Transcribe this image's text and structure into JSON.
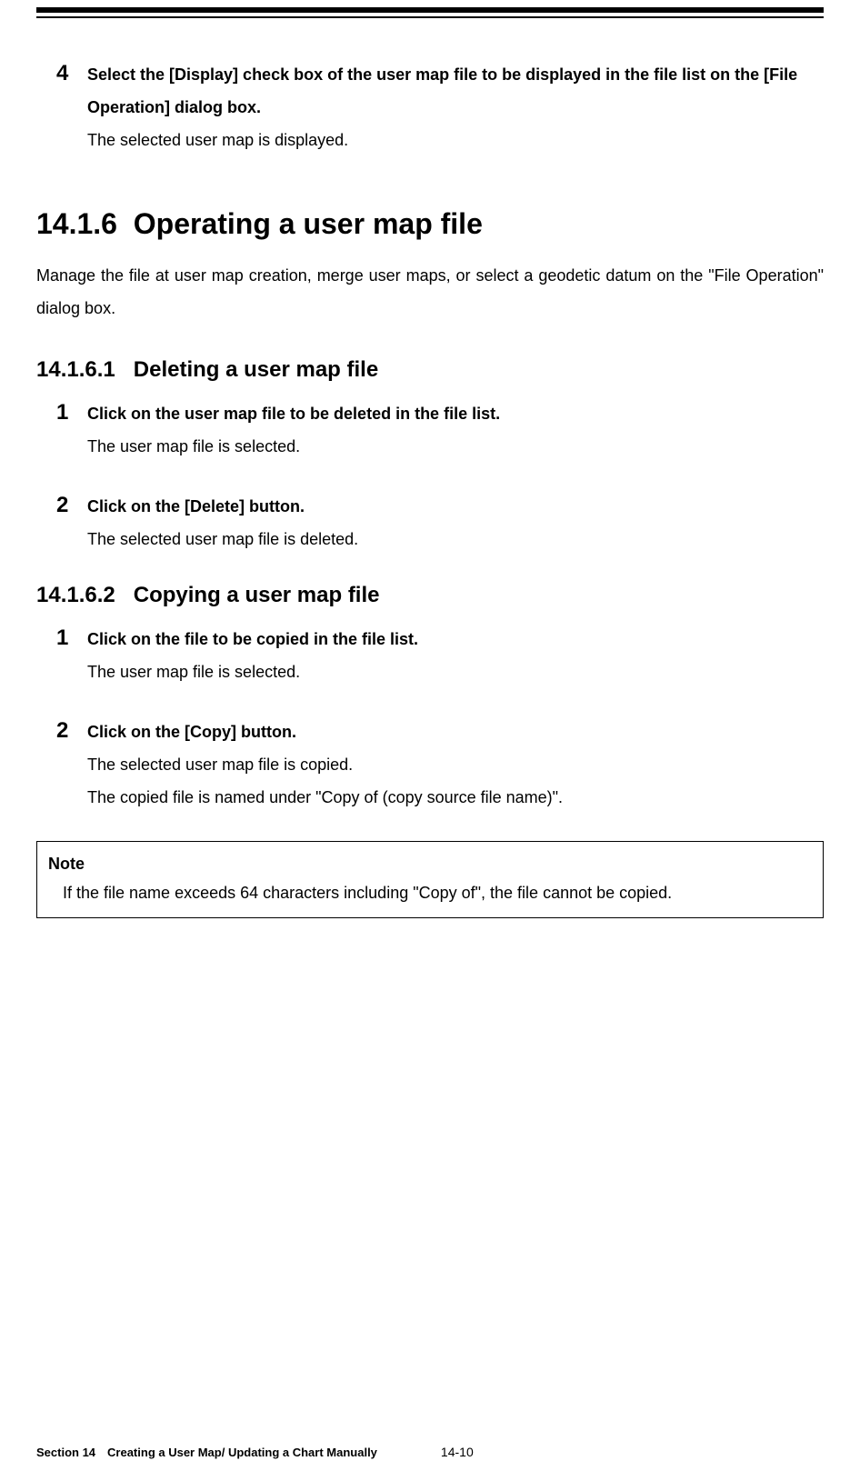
{
  "step4": {
    "num": "4",
    "title": "Select the [Display] check box of the user map file to be displayed in the file list on the [File Operation] dialog box.",
    "desc": "The selected user map is displayed."
  },
  "section_14_1_6": {
    "number": "14.1.6",
    "title": "Operating a user map file",
    "intro": "Manage the file at user map creation, merge user maps, or select a geodetic datum on the \"File Operation\" dialog box."
  },
  "section_14_1_6_1": {
    "number": "14.1.6.1",
    "title": "Deleting a user map file",
    "steps": [
      {
        "num": "1",
        "title": "Click on the user map file to be deleted in the file list.",
        "desc": "The user map file is selected."
      },
      {
        "num": "2",
        "title": "Click on the [Delete] button.",
        "desc": "The selected user map file is deleted."
      }
    ]
  },
  "section_14_1_6_2": {
    "number": "14.1.6.2",
    "title": "Copying a user map file",
    "steps": [
      {
        "num": "1",
        "title": "Click on the file to be copied in the file list.",
        "desc": "The user map file is selected."
      },
      {
        "num": "2",
        "title": "Click on the [Copy] button.",
        "desc": "The selected user map file is copied.",
        "desc2": "The copied file is named under \"Copy of (copy source file name)\"."
      }
    ]
  },
  "note": {
    "label": "Note",
    "text": "If the file name exceeds 64 characters including \"Copy of\", the file cannot be copied."
  },
  "footer": {
    "section": "Section 14 Creating a User Map/ Updating a Chart Manually",
    "page": "14-10"
  }
}
